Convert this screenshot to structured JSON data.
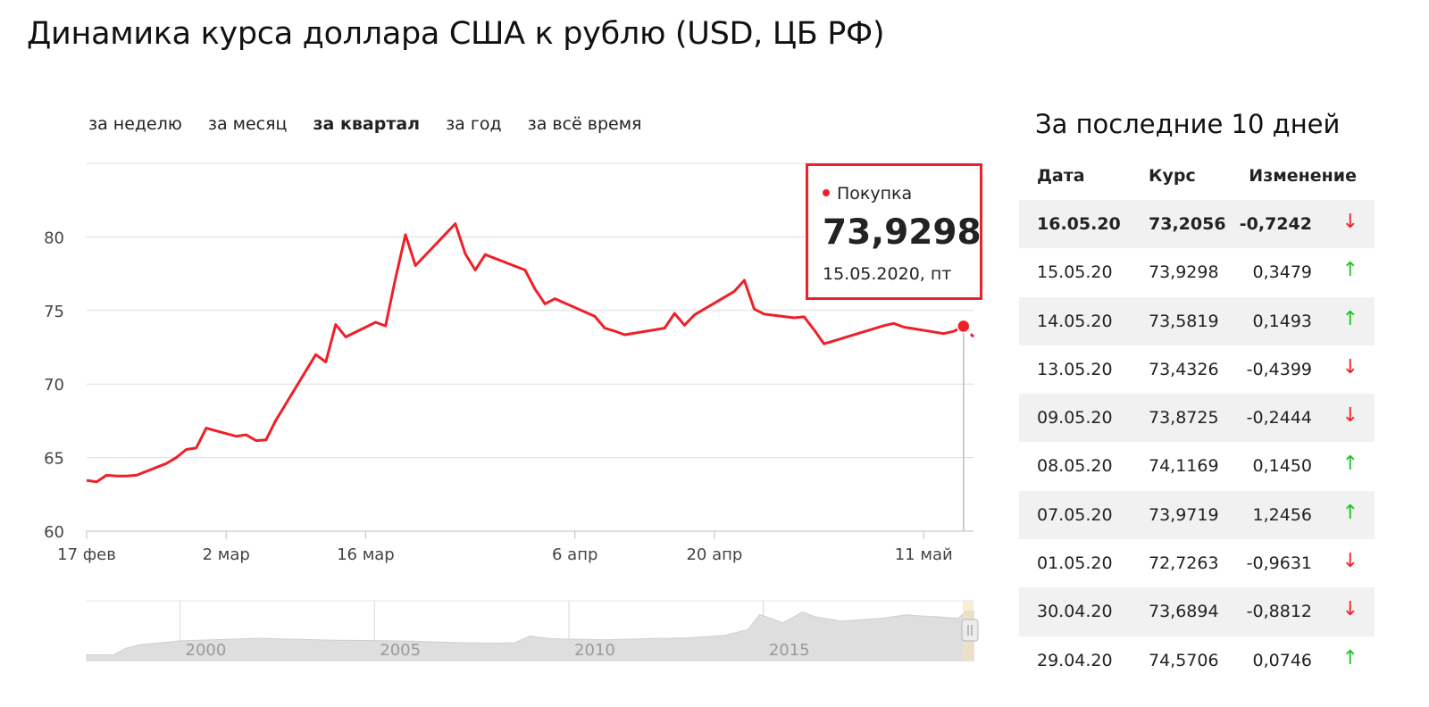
{
  "title": "Динамика курса доллара США к рублю (USD, ЦБ РФ)",
  "periods": [
    {
      "label": "за неделю",
      "active": false
    },
    {
      "label": "за месяц",
      "active": false
    },
    {
      "label": "за квартал",
      "active": true
    },
    {
      "label": "за год",
      "active": false
    },
    {
      "label": "за всё время",
      "active": false
    }
  ],
  "tooltip": {
    "label": "Покупка",
    "value": "73,9298",
    "date": "15.05.2020, пт"
  },
  "side": {
    "title": "За последние 10 дней",
    "headers": {
      "date": "Дата",
      "rate": "Курс",
      "change": "Изменение"
    },
    "rows": [
      {
        "date": "16.05.20",
        "rate": "73,2056",
        "change": "-0,7242",
        "dir": "down"
      },
      {
        "date": "15.05.20",
        "rate": "73,9298",
        "change": "0,3479",
        "dir": "up"
      },
      {
        "date": "14.05.20",
        "rate": "73,5819",
        "change": "0,1493",
        "dir": "up"
      },
      {
        "date": "13.05.20",
        "rate": "73,4326",
        "change": "-0,4399",
        "dir": "down"
      },
      {
        "date": "09.05.20",
        "rate": "73,8725",
        "change": "-0,2444",
        "dir": "down"
      },
      {
        "date": "08.05.20",
        "rate": "74,1169",
        "change": "0,1450",
        "dir": "up"
      },
      {
        "date": "07.05.20",
        "rate": "73,9719",
        "change": "1,2456",
        "dir": "up"
      },
      {
        "date": "01.05.20",
        "rate": "72,7263",
        "change": "-0,9631",
        "dir": "down"
      },
      {
        "date": "30.04.20",
        "rate": "73,6894",
        "change": "-0,8812",
        "dir": "down"
      },
      {
        "date": "29.04.20",
        "rate": "74,5706",
        "change": "0,0746",
        "dir": "up"
      }
    ],
    "arrows": {
      "up": "↑",
      "down": "↓"
    }
  },
  "colors": {
    "line": "#ee2028",
    "grid": "#dcdcdc",
    "up": "#19c71e",
    "down": "#ee2028",
    "navigator": "#dedede"
  },
  "chart_data": {
    "type": "line",
    "ylim": [
      60,
      85
    ],
    "yticks": [
      60,
      65,
      70,
      75,
      80
    ],
    "ytick_labels": [
      "60",
      "65",
      "70",
      "75",
      "80"
    ],
    "xlim": [
      "2020-02-17",
      "2020-05-16"
    ],
    "xticks": [
      {
        "date": "2020-02-17",
        "label": "17 фев"
      },
      {
        "date": "2020-03-02",
        "label": "2 мар"
      },
      {
        "date": "2020-03-16",
        "label": "16 мар"
      },
      {
        "date": "2020-04-06",
        "label": "6 апр"
      },
      {
        "date": "2020-04-20",
        "label": "20 апр"
      },
      {
        "date": "2020-05-11",
        "label": "11 май"
      }
    ],
    "grid": true,
    "highlight": {
      "date": "2020-05-15",
      "value": 73.93
    },
    "series": [
      {
        "points": [
          [
            "2020-02-17",
            63.45
          ],
          [
            "2020-02-18",
            63.35
          ],
          [
            "2020-02-19",
            63.8
          ],
          [
            "2020-02-20",
            63.75
          ],
          [
            "2020-02-21",
            63.75
          ],
          [
            "2020-02-22",
            63.8
          ],
          [
            "2020-02-25",
            64.6
          ],
          [
            "2020-02-26",
            65.0
          ],
          [
            "2020-02-27",
            65.55
          ],
          [
            "2020-02-28",
            65.65
          ],
          [
            "2020-02-29",
            67.0
          ],
          [
            "2020-03-03",
            66.45
          ],
          [
            "2020-03-04",
            66.55
          ],
          [
            "2020-03-05",
            66.15
          ],
          [
            "2020-03-06",
            66.2
          ],
          [
            "2020-03-07",
            67.55
          ],
          [
            "2020-03-11",
            72.0
          ],
          [
            "2020-03-12",
            71.5
          ],
          [
            "2020-03-13",
            74.05
          ],
          [
            "2020-03-14",
            73.2
          ],
          [
            "2020-03-17",
            74.2
          ],
          [
            "2020-03-18",
            73.95
          ],
          [
            "2020-03-19",
            77.2
          ],
          [
            "2020-03-20",
            80.15
          ],
          [
            "2020-03-21",
            78.05
          ],
          [
            "2020-03-25",
            80.9
          ],
          [
            "2020-03-26",
            78.85
          ],
          [
            "2020-03-27",
            77.75
          ],
          [
            "2020-03-28",
            78.8
          ],
          [
            "2020-04-01",
            77.75
          ],
          [
            "2020-04-02",
            76.45
          ],
          [
            "2020-04-03",
            75.45
          ],
          [
            "2020-04-04",
            75.8
          ],
          [
            "2020-04-08",
            74.6
          ],
          [
            "2020-04-09",
            73.8
          ],
          [
            "2020-04-10",
            73.6
          ],
          [
            "2020-04-11",
            73.35
          ],
          [
            "2020-04-15",
            73.8
          ],
          [
            "2020-04-16",
            74.8
          ],
          [
            "2020-04-17",
            74.0
          ],
          [
            "2020-04-18",
            74.7
          ],
          [
            "2020-04-22",
            76.3
          ],
          [
            "2020-04-23",
            77.05
          ],
          [
            "2020-04-24",
            75.1
          ],
          [
            "2020-04-25",
            74.75
          ],
          [
            "2020-04-28",
            74.5
          ],
          [
            "2020-04-29",
            74.57
          ],
          [
            "2020-04-30",
            73.69
          ],
          [
            "2020-05-01",
            72.73
          ],
          [
            "2020-05-07",
            73.97
          ],
          [
            "2020-05-08",
            74.12
          ],
          [
            "2020-05-09",
            73.87
          ],
          [
            "2020-05-13",
            73.43
          ],
          [
            "2020-05-14",
            73.58
          ],
          [
            "2020-05-15",
            73.93
          ],
          [
            "2020-05-16",
            73.21
          ]
        ]
      }
    ],
    "navigator": {
      "xlim": [
        1997.6,
        2020.4
      ],
      "xticks": [
        2000,
        2005,
        2010,
        2015
      ],
      "points": [
        [
          1997.6,
          6.0
        ],
        [
          1998.3,
          6.2
        ],
        [
          1998.6,
          16.0
        ],
        [
          1999.0,
          22.0
        ],
        [
          1999.5,
          24.5
        ],
        [
          2000.0,
          27.5
        ],
        [
          2001.0,
          29.5
        ],
        [
          2002.0,
          31.5
        ],
        [
          2003.0,
          30.0
        ],
        [
          2004.0,
          28.5
        ],
        [
          2005.0,
          28.0
        ],
        [
          2006.0,
          27.0
        ],
        [
          2007.0,
          25.0
        ],
        [
          2008.0,
          24.0
        ],
        [
          2008.6,
          24.5
        ],
        [
          2009.0,
          35.0
        ],
        [
          2009.5,
          31.0
        ],
        [
          2010.0,
          30.2
        ],
        [
          2011.0,
          29.0
        ],
        [
          2012.0,
          31.0
        ],
        [
          2013.0,
          32.0
        ],
        [
          2014.0,
          36.0
        ],
        [
          2014.6,
          45.0
        ],
        [
          2014.9,
          68.0
        ],
        [
          2015.2,
          62.0
        ],
        [
          2015.5,
          55.0
        ],
        [
          2016.0,
          72.0
        ],
        [
          2016.3,
          65.0
        ],
        [
          2017.0,
          58.0
        ],
        [
          2018.0,
          62.0
        ],
        [
          2018.7,
          67.5
        ],
        [
          2019.0,
          66.0
        ],
        [
          2019.5,
          64.5
        ],
        [
          2020.0,
          62.0
        ],
        [
          2020.2,
          73.0
        ],
        [
          2020.4,
          73.5
        ]
      ]
    }
  }
}
